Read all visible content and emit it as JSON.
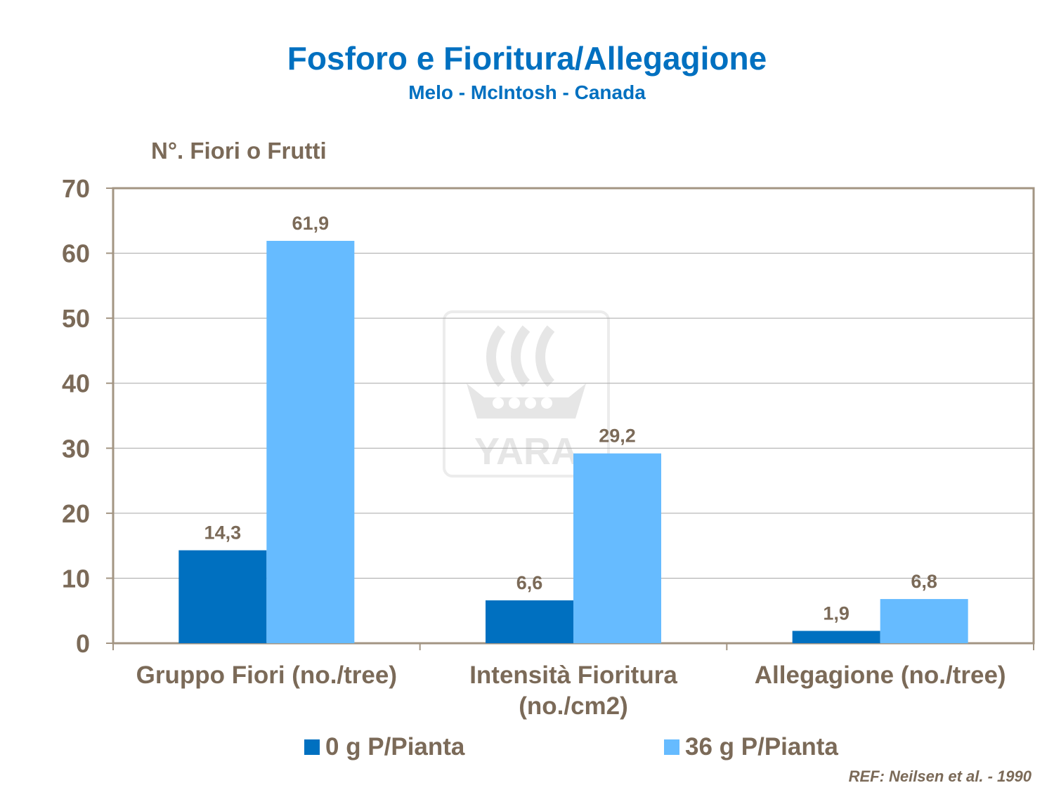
{
  "header": {
    "title": "Fosforo e Fioritura/Allegagione",
    "subtitle": "Melo - McIntosh - Canada"
  },
  "reference": "REF: Neilsen et al. - 1990",
  "watermark": {
    "text": "YARA",
    "icon": "yara-viking-ship-logo"
  },
  "colors": {
    "series_0": "#0070c0",
    "series_36": "#66bbff",
    "text": "#7b6a58",
    "title": "#0070c0"
  },
  "chart_data": {
    "type": "bar",
    "ylabel": "N°. Fiori o Frutti",
    "ylim": [
      0,
      70
    ],
    "yticks": [
      "0",
      "10",
      "20",
      "30",
      "40",
      "50",
      "60",
      "70"
    ],
    "categories": [
      [
        "Gruppo Fiori (no./tree)"
      ],
      [
        "Intensità Fioritura",
        "(no./cm2)"
      ],
      [
        "Allegagione (no./tree)"
      ]
    ],
    "series": [
      {
        "name": "0 g P/Pianta",
        "values": [
          14.3,
          6.6,
          1.9
        ],
        "labels": [
          "14,3",
          "6,6",
          "1,9"
        ],
        "color": "#0070c0"
      },
      {
        "name": "36 g P/Pianta",
        "values": [
          61.9,
          29.2,
          6.8
        ],
        "labels": [
          "61,9",
          "29,2",
          "6,8"
        ],
        "color": "#66bbff"
      }
    ],
    "grid": true,
    "legend": "bottom"
  }
}
